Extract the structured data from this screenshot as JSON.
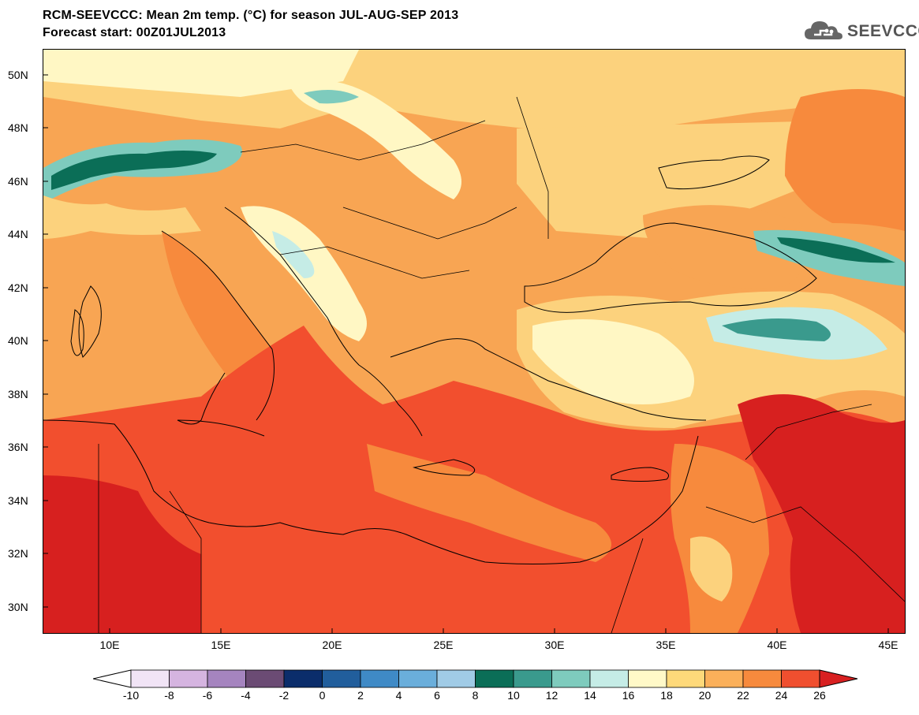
{
  "header": {
    "title": "RCM-SEEVCCC: Mean 2m temp. (°C) for season JUL-AUG-SEP 2013",
    "subtitle": "Forecast start: 00Z01JUL2013",
    "logo_text": "SEEVCCC"
  },
  "map": {
    "lat_labels": [
      "50N",
      "48N",
      "46N",
      "44N",
      "42N",
      "40N",
      "38N",
      "36N",
      "34N",
      "32N",
      "30N"
    ],
    "lon_labels": [
      "10E",
      "15E",
      "20E",
      "25E",
      "30E",
      "35E",
      "40E",
      "45E"
    ]
  },
  "colorbar": {
    "labels": [
      "-10",
      "-8",
      "-6",
      "-4",
      "-2",
      "0",
      "2",
      "4",
      "6",
      "8",
      "10",
      "12",
      "14",
      "16",
      "18",
      "20",
      "22",
      "24",
      "26"
    ],
    "colors": [
      "#ffffff",
      "#f1e4f6",
      "#d5b4e0",
      "#a584bf",
      "#6b4b74",
      "#0b2d6b",
      "#215e9c",
      "#3f8ac6",
      "#6aaedb",
      "#a0cbe6",
      "#0b6e57",
      "#3a9a8d",
      "#7ecbbd",
      "#c5ece6",
      "#fff9c8",
      "#fed97a",
      "#fbb05a",
      "#f78a3d",
      "#f04f2f",
      "#d82021"
    ]
  },
  "colors": {
    "sea_hot": "#f24f2e",
    "land_warm": "#f8a553",
    "land_mild": "#fcd27d",
    "land_cool": "#fff7c4",
    "mountain_cold": "#3a9a8d",
    "desert_hot": "#d7201f"
  }
}
